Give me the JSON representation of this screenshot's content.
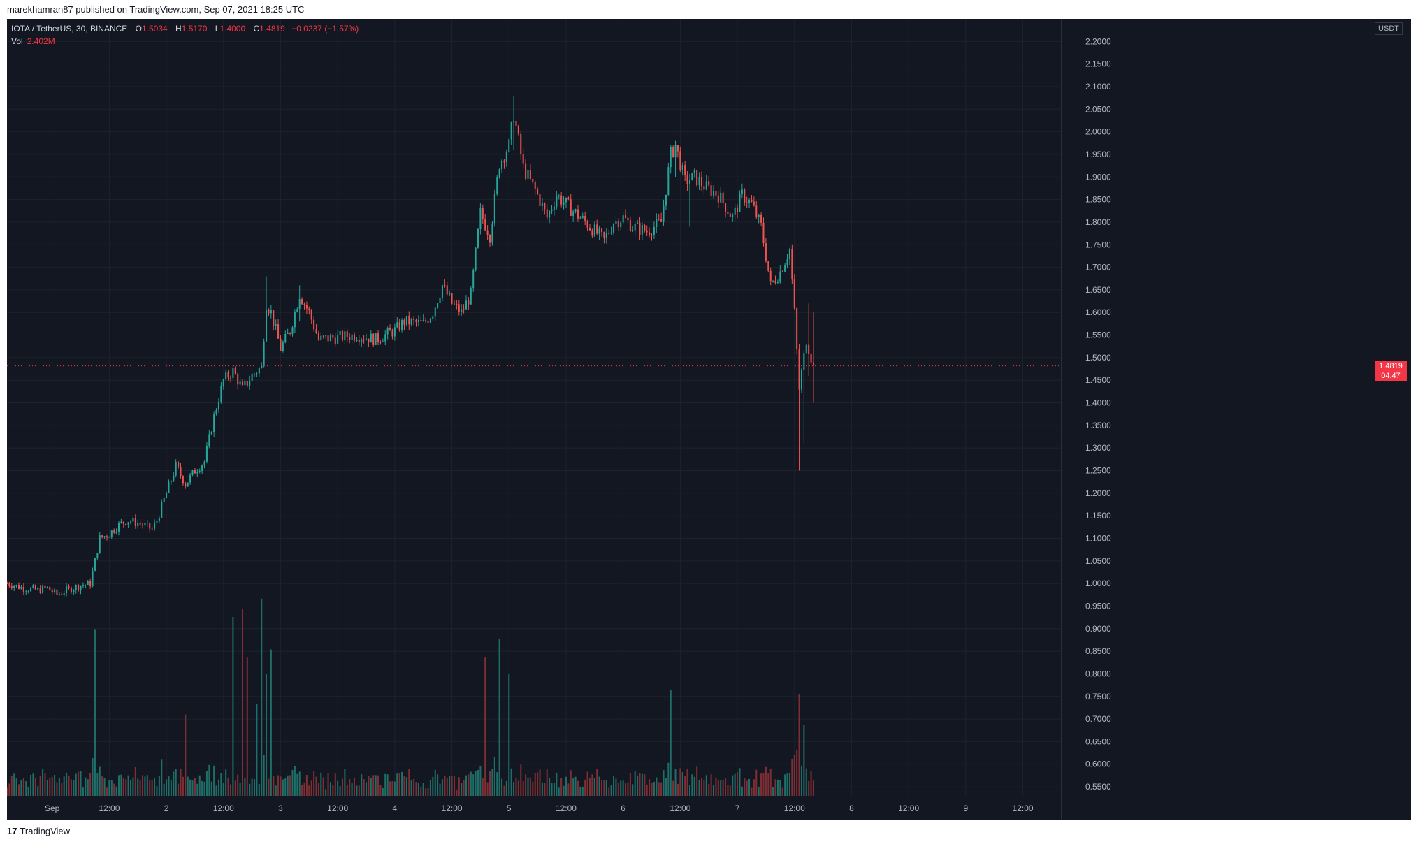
{
  "header": {
    "published_text": "marekhamran87 published on TradingView.com, Sep 07, 2021 18:25 UTC"
  },
  "legend": {
    "symbol": "IOTA / TetherUS, 30, BINANCE",
    "o_label": "O",
    "o_value": "1.5034",
    "h_label": "H",
    "h_value": "1.5170",
    "l_label": "L",
    "l_value": "1.4000",
    "c_label": "C",
    "c_value": "1.4819",
    "change": "−0.0237 (−1.57%)",
    "vol_label": "Vol",
    "vol_value": "2.402M"
  },
  "price_axis": {
    "currency": "USDT",
    "last_price": "1.4819",
    "countdown": "04:47"
  },
  "footer": {
    "brand": "TradingView",
    "brand_mark": "17"
  },
  "colors": {
    "up": "#26a69a",
    "down": "#ef5350",
    "up_volume": "#1f6e68",
    "down_volume": "#7f2f34",
    "background": "#131722",
    "grid": "#1e222d",
    "axis_text": "#b2b5be",
    "last_price_line": "#f23645"
  },
  "chart_data": {
    "type": "candlestick",
    "interval": "30",
    "symbol": "IOTA/USDT",
    "exchange": "BINANCE",
    "ylim": [
      0.53,
      2.25
    ],
    "yticks": [
      2.2,
      2.15,
      2.1,
      2.05,
      2.0,
      1.95,
      1.9,
      1.85,
      1.8,
      1.75,
      1.7,
      1.65,
      1.6,
      1.55,
      1.5,
      1.45,
      1.4,
      1.35,
      1.3,
      1.25,
      1.2,
      1.15,
      1.1,
      1.05,
      1.0,
      0.95,
      0.9,
      0.85,
      0.8,
      0.75,
      0.7,
      0.65,
      0.6,
      0.55
    ],
    "xticks": [
      {
        "label": "Sep",
        "hour": 0
      },
      {
        "label": "12:00",
        "hour": 12
      },
      {
        "label": "2",
        "hour": 24
      },
      {
        "label": "12:00",
        "hour": 36
      },
      {
        "label": "3",
        "hour": 48
      },
      {
        "label": "12:00",
        "hour": 60
      },
      {
        "label": "4",
        "hour": 72
      },
      {
        "label": "12:00",
        "hour": 84
      },
      {
        "label": "5",
        "hour": 96
      },
      {
        "label": "12:00",
        "hour": 108
      },
      {
        "label": "6",
        "hour": 120
      },
      {
        "label": "12:00",
        "hour": 132
      },
      {
        "label": "7",
        "hour": 144
      },
      {
        "label": "12:00",
        "hour": 156
      },
      {
        "label": "8",
        "hour": 168
      },
      {
        "label": "12:00",
        "hour": 180
      },
      {
        "label": "9",
        "hour": 192
      },
      {
        "label": "12:00",
        "hour": 204
      }
    ],
    "xlim_hours": [
      -9.5,
      212
    ],
    "last_price": 1.4819,
    "price_path": [
      {
        "hour": -9.5,
        "price": 1.0
      },
      {
        "hour": -6,
        "price": 0.99
      },
      {
        "hour": -3,
        "price": 0.985
      },
      {
        "hour": -1,
        "price": 0.99
      },
      {
        "hour": 1,
        "price": 0.975
      },
      {
        "hour": 3,
        "price": 0.985
      },
      {
        "hour": 6,
        "price": 0.995
      },
      {
        "hour": 8,
        "price": 1.0
      },
      {
        "hour": 9,
        "price": 1.05
      },
      {
        "hour": 10,
        "price": 1.1
      },
      {
        "hour": 12,
        "price": 1.11
      },
      {
        "hour": 14,
        "price": 1.13
      },
      {
        "hour": 16,
        "price": 1.14
      },
      {
        "hour": 19,
        "price": 1.13
      },
      {
        "hour": 21,
        "price": 1.12
      },
      {
        "hour": 22,
        "price": 1.14
      },
      {
        "hour": 24,
        "price": 1.2
      },
      {
        "hour": 26,
        "price": 1.26
      },
      {
        "hour": 28,
        "price": 1.22
      },
      {
        "hour": 30,
        "price": 1.25
      },
      {
        "hour": 32,
        "price": 1.27
      },
      {
        "hour": 34,
        "price": 1.37
      },
      {
        "hour": 36,
        "price": 1.45
      },
      {
        "hour": 38,
        "price": 1.47
      },
      {
        "hour": 40,
        "price": 1.43
      },
      {
        "hour": 42,
        "price": 1.46
      },
      {
        "hour": 44,
        "price": 1.48
      },
      {
        "hour": 45,
        "price": 1.62
      },
      {
        "hour": 46,
        "price": 1.6
      },
      {
        "hour": 48,
        "price": 1.52
      },
      {
        "hour": 50,
        "price": 1.56
      },
      {
        "hour": 52,
        "price": 1.64
      },
      {
        "hour": 54,
        "price": 1.6
      },
      {
        "hour": 56,
        "price": 1.54
      },
      {
        "hour": 60,
        "price": 1.545
      },
      {
        "hour": 64,
        "price": 1.55
      },
      {
        "hour": 68,
        "price": 1.54
      },
      {
        "hour": 72,
        "price": 1.56
      },
      {
        "hour": 74,
        "price": 1.58
      },
      {
        "hour": 78,
        "price": 1.575
      },
      {
        "hour": 80,
        "price": 1.6
      },
      {
        "hour": 82,
        "price": 1.66
      },
      {
        "hour": 84,
        "price": 1.62
      },
      {
        "hour": 86,
        "price": 1.6
      },
      {
        "hour": 88,
        "price": 1.64
      },
      {
        "hour": 90,
        "price": 1.82
      },
      {
        "hour": 92,
        "price": 1.77
      },
      {
        "hour": 94,
        "price": 1.93
      },
      {
        "hour": 96,
        "price": 1.97
      },
      {
        "hour": 97,
        "price": 2.04
      },
      {
        "hour": 99,
        "price": 1.92
      },
      {
        "hour": 102,
        "price": 1.86
      },
      {
        "hour": 104,
        "price": 1.81
      },
      {
        "hour": 106,
        "price": 1.86
      },
      {
        "hour": 110,
        "price": 1.82
      },
      {
        "hour": 113,
        "price": 1.79
      },
      {
        "hour": 116,
        "price": 1.76
      },
      {
        "hour": 118,
        "price": 1.8
      },
      {
        "hour": 120,
        "price": 1.81
      },
      {
        "hour": 122,
        "price": 1.79
      },
      {
        "hour": 125,
        "price": 1.78
      },
      {
        "hour": 128,
        "price": 1.8
      },
      {
        "hour": 130,
        "price": 1.95
      },
      {
        "hour": 131,
        "price": 1.97
      },
      {
        "hour": 133,
        "price": 1.89
      },
      {
        "hour": 135,
        "price": 1.9
      },
      {
        "hour": 137,
        "price": 1.88
      },
      {
        "hour": 140,
        "price": 1.86
      },
      {
        "hour": 143,
        "price": 1.81
      },
      {
        "hour": 145,
        "price": 1.86
      },
      {
        "hour": 147,
        "price": 1.84
      },
      {
        "hour": 149,
        "price": 1.79
      },
      {
        "hour": 151,
        "price": 1.66
      },
      {
        "hour": 153,
        "price": 1.69
      },
      {
        "hour": 155,
        "price": 1.74
      },
      {
        "hour": 156,
        "price": 1.6
      },
      {
        "hour": 157,
        "price": 1.43
      },
      {
        "hour": 158.5,
        "price": 1.54
      },
      {
        "hour": 160,
        "price": 1.48
      }
    ],
    "notable_wicks": [
      {
        "hour": 97,
        "high": 2.08,
        "low": 1.96
      },
      {
        "hour": 131,
        "high": 1.98,
        "low": 1.9
      },
      {
        "hour": 134,
        "high": 1.88,
        "low": 1.79
      },
      {
        "hour": 45,
        "high": 1.68,
        "low": 1.55
      },
      {
        "hour": 52,
        "high": 1.66,
        "low": 1.58
      },
      {
        "hour": 157,
        "high": 1.52,
        "low": 1.25
      },
      {
        "hour": 158,
        "high": 1.5,
        "low": 1.31
      },
      {
        "hour": 159,
        "high": 1.62,
        "low": 1.46
      },
      {
        "hour": 160,
        "high": 1.6,
        "low": 1.4
      }
    ],
    "volume_spikes": [
      {
        "hour": 9,
        "rel": 0.82
      },
      {
        "hour": 38,
        "rel": 0.88
      },
      {
        "hour": 40,
        "rel": 0.92
      },
      {
        "hour": 44,
        "rel": 0.97
      },
      {
        "hour": 45,
        "rel": 0.6
      },
      {
        "hour": 46,
        "rel": 0.72
      },
      {
        "hour": 43,
        "rel": 0.45
      },
      {
        "hour": 41,
        "rel": 0.68
      },
      {
        "hour": 91,
        "rel": 0.68
      },
      {
        "hour": 94,
        "rel": 0.77
      },
      {
        "hour": 96,
        "rel": 0.6
      },
      {
        "hour": 130,
        "rel": 0.52
      },
      {
        "hour": 157,
        "rel": 0.5
      },
      {
        "hour": 158,
        "rel": 0.35
      },
      {
        "hour": 28,
        "rel": 0.4
      }
    ]
  }
}
